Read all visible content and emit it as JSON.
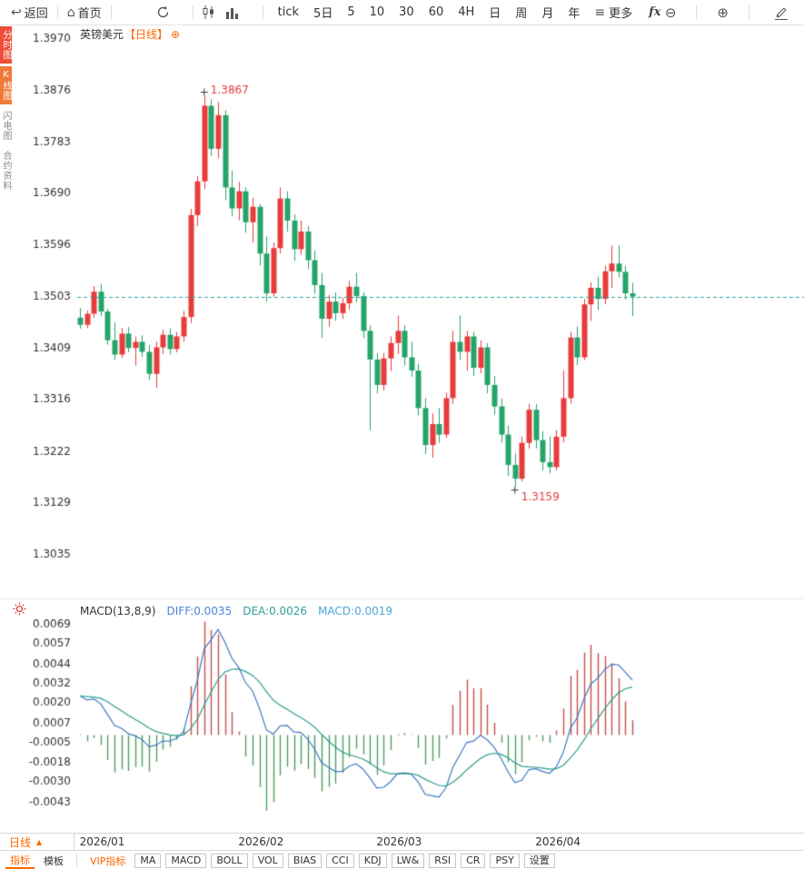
{
  "toolbar": {
    "back_label": "返回",
    "home_label": "首页",
    "periods": [
      "tick",
      "5日",
      "5",
      "10",
      "30",
      "60",
      "4H",
      "日",
      "周",
      "月",
      "年"
    ],
    "more_label": "更多",
    "fx_label": "fx"
  },
  "icons": {
    "back": "↩",
    "home": "⌂",
    "more": "≡",
    "zoom_out": "⊖",
    "zoom_in": "⊕",
    "title_plus": "⊕",
    "collapse": "▲"
  },
  "left_tabs": [
    {
      "label": "分时图",
      "active": true
    },
    {
      "label": "K线图",
      "active": true
    },
    {
      "label": "闪电图",
      "active": false
    },
    {
      "label": "合约资料",
      "active": false
    }
  ],
  "chart_header": {
    "symbol": "英镑美元",
    "period_tag": "【日线】"
  },
  "macd_header": {
    "title": "MACD(13,8,9)",
    "diff": "DIFF:0.0035",
    "dea": "DEA:0.0026",
    "macd": "MACD:0.0019"
  },
  "bottom_axis": {
    "period_label": "日线"
  },
  "bottom_bar": {
    "tabs": [
      "指标",
      "模板",
      "VIP指标",
      "MA",
      "MACD",
      "BOLL",
      "VOL",
      "BIAS",
      "CCI",
      "KDJ",
      "LW&",
      "RSI",
      "CR",
      "PSY",
      "设置"
    ]
  },
  "colors": {
    "up": "#e83c3c",
    "down": "#26a46a",
    "last_price_line": "#2aa7a0",
    "diff_line": "#4178c4",
    "dea_line": "#2f9e8f",
    "hist_up": "#c2504a",
    "hist_down": "#4c9e5f",
    "accent": "#ff6600",
    "annotation": "#e23b3b",
    "axis_text": "#333333"
  },
  "chart_data": {
    "type": "candlestick",
    "symbol": "英镑美元",
    "period": "日线",
    "y_axis": {
      "ticks": [
        1.397,
        1.3876,
        1.3783,
        1.369,
        1.3596,
        1.3503,
        1.3409,
        1.3316,
        1.3222,
        1.3129,
        1.3035
      ]
    },
    "x_axis": {
      "labels": [
        "2026/01",
        "2026/02",
        "2026/03",
        "2026/04"
      ],
      "label_indices": [
        1,
        24,
        44,
        67
      ]
    },
    "annotations": {
      "high": 1.3867,
      "low": 1.3159,
      "last_close": 1.3503
    },
    "candles_ohlc": [
      [
        1.3465,
        1.3482,
        1.3445,
        1.3452
      ],
      [
        1.3452,
        1.3478,
        1.3446,
        1.3472
      ],
      [
        1.3472,
        1.3522,
        1.3465,
        1.3512
      ],
      [
        1.3512,
        1.3526,
        1.3468,
        1.3476
      ],
      [
        1.3476,
        1.3481,
        1.3416,
        1.3424
      ],
      [
        1.3424,
        1.3456,
        1.3388,
        1.3398
      ],
      [
        1.3398,
        1.3446,
        1.3392,
        1.3436
      ],
      [
        1.3436,
        1.3448,
        1.3402,
        1.341
      ],
      [
        1.341,
        1.3431,
        1.3378,
        1.3421
      ],
      [
        1.3421,
        1.3433,
        1.3394,
        1.3403
      ],
      [
        1.3403,
        1.3415,
        1.3352,
        1.3363
      ],
      [
        1.3363,
        1.3421,
        1.3338,
        1.3411
      ],
      [
        1.3411,
        1.3443,
        1.3399,
        1.3434
      ],
      [
        1.3434,
        1.3446,
        1.3398,
        1.3408
      ],
      [
        1.3408,
        1.3439,
        1.3402,
        1.3431
      ],
      [
        1.3431,
        1.3477,
        1.3421,
        1.3466
      ],
      [
        1.3466,
        1.3662,
        1.3455,
        1.3651
      ],
      [
        1.3651,
        1.3722,
        1.3631,
        1.3712
      ],
      [
        1.3712,
        1.3867,
        1.3698,
        1.3849
      ],
      [
        1.3849,
        1.3861,
        1.3758,
        1.3771
      ],
      [
        1.3771,
        1.3856,
        1.3754,
        1.3832
      ],
      [
        1.3832,
        1.3841,
        1.3678,
        1.3701
      ],
      [
        1.3701,
        1.3731,
        1.3649,
        1.3663
      ],
      [
        1.3663,
        1.3711,
        1.3641,
        1.3694
      ],
      [
        1.3694,
        1.3701,
        1.3619,
        1.3638
      ],
      [
        1.3638,
        1.3682,
        1.3601,
        1.3666
      ],
      [
        1.3666,
        1.3671,
        1.3559,
        1.3581
      ],
      [
        1.3581,
        1.3612,
        1.3494,
        1.3509
      ],
      [
        1.3509,
        1.3601,
        1.3503,
        1.3591
      ],
      [
        1.3591,
        1.3701,
        1.3581,
        1.3681
      ],
      [
        1.3681,
        1.3694,
        1.3621,
        1.3641
      ],
      [
        1.3641,
        1.3652,
        1.3568,
        1.3589
      ],
      [
        1.3589,
        1.3641,
        1.3579,
        1.3621
      ],
      [
        1.3621,
        1.3631,
        1.3553,
        1.3569
      ],
      [
        1.3569,
        1.3586,
        1.3508,
        1.3524
      ],
      [
        1.3524,
        1.3546,
        1.3428,
        1.3463
      ],
      [
        1.3463,
        1.3506,
        1.3449,
        1.3494
      ],
      [
        1.3494,
        1.3511,
        1.3459,
        1.3473
      ],
      [
        1.3473,
        1.3501,
        1.3463,
        1.3491
      ],
      [
        1.3491,
        1.3532,
        1.3479,
        1.3521
      ],
      [
        1.3521,
        1.3546,
        1.3493,
        1.3504
      ],
      [
        1.3504,
        1.3511,
        1.3428,
        1.3441
      ],
      [
        1.3441,
        1.3451,
        1.3261,
        1.3389
      ],
      [
        1.3389,
        1.3401,
        1.3328,
        1.3343
      ],
      [
        1.3343,
        1.3401,
        1.3333,
        1.3391
      ],
      [
        1.3391,
        1.3431,
        1.3368,
        1.3419
      ],
      [
        1.3419,
        1.3469,
        1.3399,
        1.3441
      ],
      [
        1.3441,
        1.3451,
        1.3378,
        1.3393
      ],
      [
        1.3393,
        1.3421,
        1.3358,
        1.3369
      ],
      [
        1.3369,
        1.3381,
        1.3288,
        1.3301
      ],
      [
        1.3301,
        1.3319,
        1.3218,
        1.3234
      ],
      [
        1.3234,
        1.3291,
        1.3211,
        1.3272
      ],
      [
        1.3272,
        1.3301,
        1.3238,
        1.3253
      ],
      [
        1.3253,
        1.3329,
        1.3247,
        1.3319
      ],
      [
        1.3319,
        1.3441,
        1.3309,
        1.3421
      ],
      [
        1.3421,
        1.3469,
        1.3388,
        1.3403
      ],
      [
        1.3403,
        1.3441,
        1.3369,
        1.3431
      ],
      [
        1.3431,
        1.3439,
        1.3359,
        1.3374
      ],
      [
        1.3374,
        1.3424,
        1.3364,
        1.3411
      ],
      [
        1.3411,
        1.3419,
        1.3328,
        1.3343
      ],
      [
        1.3343,
        1.3359,
        1.3289,
        1.3304
      ],
      [
        1.3304,
        1.3318,
        1.3238,
        1.3253
      ],
      [
        1.3253,
        1.3269,
        1.3178,
        1.3198
      ],
      [
        1.3198,
        1.3219,
        1.3159,
        1.3173
      ],
      [
        1.3173,
        1.3249,
        1.3168,
        1.3238
      ],
      [
        1.3238,
        1.3309,
        1.3228,
        1.3298
      ],
      [
        1.3298,
        1.3308,
        1.3228,
        1.3243
      ],
      [
        1.3243,
        1.3259,
        1.3188,
        1.3203
      ],
      [
        1.3203,
        1.3249,
        1.3183,
        1.3194
      ],
      [
        1.3194,
        1.3261,
        1.3188,
        1.3249
      ],
      [
        1.3249,
        1.3369,
        1.3239,
        1.3319
      ],
      [
        1.3319,
        1.3439,
        1.3309,
        1.3429
      ],
      [
        1.3429,
        1.3449,
        1.3379,
        1.3393
      ],
      [
        1.3393,
        1.3499,
        1.3388,
        1.3489
      ],
      [
        1.3489,
        1.3529,
        1.3459,
        1.3519
      ],
      [
        1.3519,
        1.3539,
        1.3479,
        1.3499
      ],
      [
        1.3499,
        1.3559,
        1.3489,
        1.3549
      ],
      [
        1.3549,
        1.3596,
        1.3519,
        1.3563
      ],
      [
        1.3563,
        1.3596,
        1.3538,
        1.3548
      ],
      [
        1.3548,
        1.3559,
        1.3498,
        1.3509
      ],
      [
        1.3509,
        1.3528,
        1.3468,
        1.3503
      ]
    ],
    "macd": {
      "params": [
        13,
        8,
        9
      ],
      "diff": 0.0035,
      "dea": 0.0026,
      "macd": 0.0019,
      "diff_peak": 0.0066,
      "y_ticks": [
        0.0069,
        0.0057,
        0.0044,
        0.0032,
        0.002,
        0.0007,
        -0.0005,
        -0.0018,
        -0.003,
        -0.0043
      ]
    }
  }
}
